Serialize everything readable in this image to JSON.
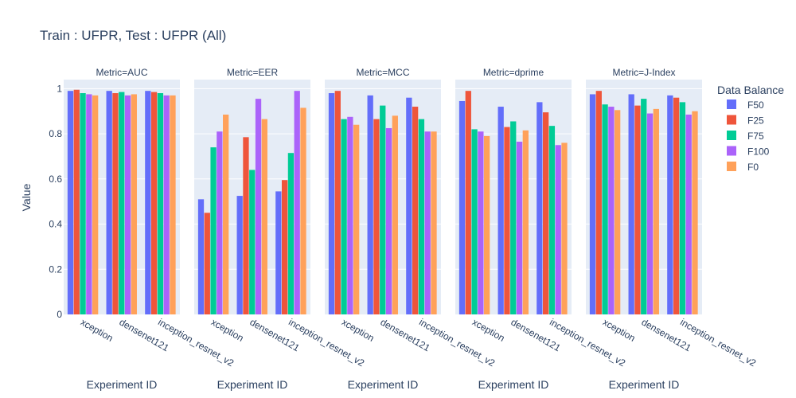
{
  "chart_data": {
    "type": "bar",
    "title": "Train : UFPR, Test : UFPR (All)",
    "ylabel": "Value",
    "xlabel": "Experiment ID",
    "ylim": [
      0,
      1.04
    ],
    "yticks": [
      "0",
      "0.2",
      "0.4",
      "0.6",
      "0.8",
      "1"
    ],
    "legend_title": "Data Balance",
    "legend_position": "right",
    "grid": true,
    "categories": [
      "xception",
      "densenet121",
      "inception_resnet_v2"
    ],
    "series_meta": [
      {
        "name": "F50",
        "color": "#636efa"
      },
      {
        "name": "F25",
        "color": "#ef553b"
      },
      {
        "name": "F75",
        "color": "#00cc96"
      },
      {
        "name": "F100",
        "color": "#ab63fa"
      },
      {
        "name": "F0",
        "color": "#ffa15a"
      }
    ],
    "panels": [
      {
        "label": "Metric=AUC",
        "series": [
          {
            "name": "F50",
            "values": [
              0.99,
              0.99,
              0.99
            ]
          },
          {
            "name": "F25",
            "values": [
              0.995,
              0.98,
              0.985
            ]
          },
          {
            "name": "F75",
            "values": [
              0.98,
              0.985,
              0.98
            ]
          },
          {
            "name": "F100",
            "values": [
              0.975,
              0.97,
              0.97
            ]
          },
          {
            "name": "F0",
            "values": [
              0.97,
              0.975,
              0.97
            ]
          }
        ]
      },
      {
        "label": "Metric=EER",
        "series": [
          {
            "name": "F50",
            "values": [
              0.51,
              0.525,
              0.545
            ]
          },
          {
            "name": "F25",
            "values": [
              0.45,
              0.785,
              0.595
            ]
          },
          {
            "name": "F75",
            "values": [
              0.74,
              0.64,
              0.715
            ]
          },
          {
            "name": "F100",
            "values": [
              0.81,
              0.955,
              0.99
            ]
          },
          {
            "name": "F0",
            "values": [
              0.885,
              0.865,
              0.915
            ]
          }
        ]
      },
      {
        "label": "Metric=MCC",
        "series": [
          {
            "name": "F50",
            "values": [
              0.98,
              0.97,
              0.96
            ]
          },
          {
            "name": "F25",
            "values": [
              0.99,
              0.865,
              0.92
            ]
          },
          {
            "name": "F75",
            "values": [
              0.865,
              0.925,
              0.865
            ]
          },
          {
            "name": "F100",
            "values": [
              0.875,
              0.825,
              0.81
            ]
          },
          {
            "name": "F0",
            "values": [
              0.84,
              0.88,
              0.81
            ]
          }
        ]
      },
      {
        "label": "Metric=dprime",
        "series": [
          {
            "name": "F50",
            "values": [
              0.945,
              0.92,
              0.94
            ]
          },
          {
            "name": "F25",
            "values": [
              0.99,
              0.83,
              0.895
            ]
          },
          {
            "name": "F75",
            "values": [
              0.82,
              0.855,
              0.835
            ]
          },
          {
            "name": "F100",
            "values": [
              0.81,
              0.765,
              0.75
            ]
          },
          {
            "name": "F0",
            "values": [
              0.79,
              0.815,
              0.76
            ]
          }
        ]
      },
      {
        "label": "Metric=J-Index",
        "series": [
          {
            "name": "F50",
            "values": [
              0.975,
              0.975,
              0.97
            ]
          },
          {
            "name": "F25",
            "values": [
              0.99,
              0.925,
              0.96
            ]
          },
          {
            "name": "F75",
            "values": [
              0.93,
              0.955,
              0.94
            ]
          },
          {
            "name": "F100",
            "values": [
              0.92,
              0.89,
              0.885
            ]
          },
          {
            "name": "F0",
            "values": [
              0.905,
              0.91,
              0.9
            ]
          }
        ]
      }
    ]
  }
}
